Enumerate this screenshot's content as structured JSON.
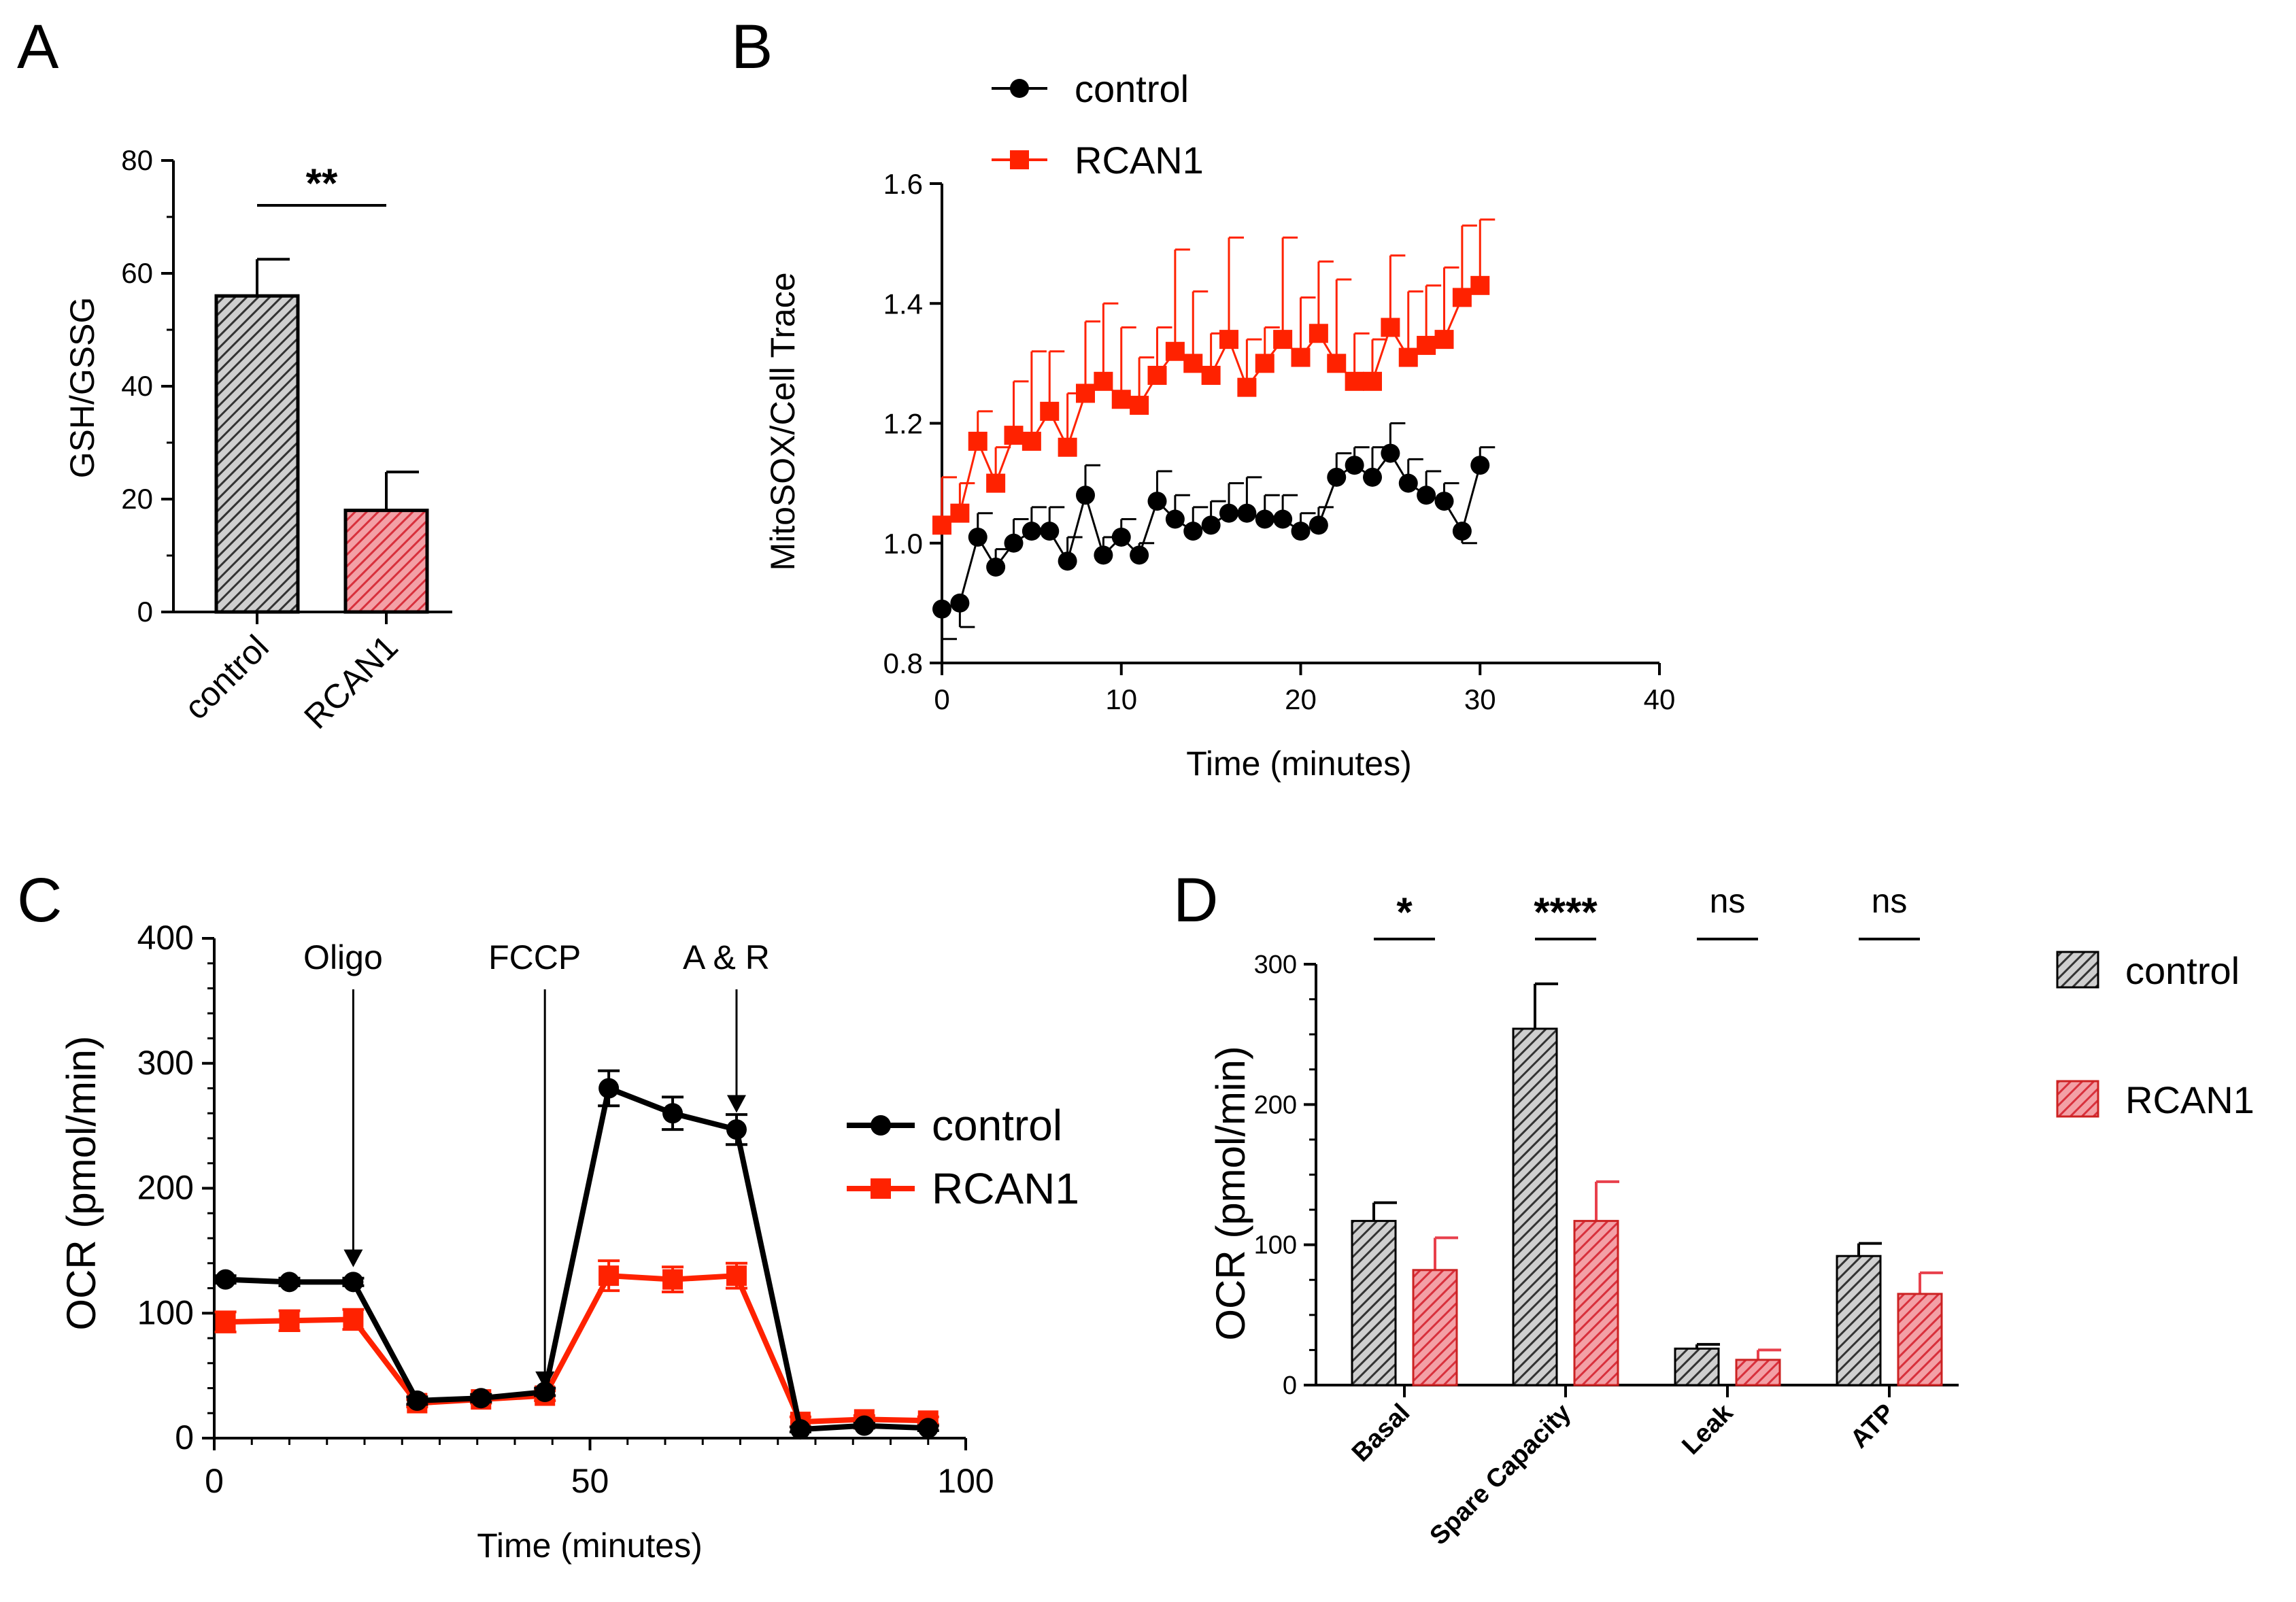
{
  "colors": {
    "control": "#000000",
    "rcan1_line": "#ff2200",
    "rcan1_bar": "#e8404c",
    "control_hatch": "#444444"
  },
  "chart_data": [
    {
      "panel": "A",
      "type": "bar",
      "ylabel": "GSH/GSSG",
      "ylim": [
        0,
        80
      ],
      "yticks": [
        "0",
        "20",
        "40",
        "60",
        "80"
      ],
      "categories": [
        "control",
        "RCAN1"
      ],
      "values": [
        56,
        18
      ],
      "errors": [
        6.5,
        6.8
      ],
      "significance": "**"
    },
    {
      "panel": "B",
      "type": "line",
      "xlabel": "Time (minutes)",
      "ylabel": "MitoSOX/Cell Trace",
      "xlim": [
        0,
        40
      ],
      "ylim": [
        0.8,
        1.6
      ],
      "xticks": [
        "0",
        "10",
        "20",
        "30",
        "40"
      ],
      "yticks": [
        "0.8",
        "1.0",
        "1.2",
        "1.4",
        "1.6"
      ],
      "series": [
        {
          "name": "control",
          "x": [
            0,
            1,
            2,
            3,
            4,
            5,
            6,
            7,
            8,
            9,
            10,
            11,
            12,
            13,
            14,
            15,
            16,
            17,
            18,
            19,
            20,
            21,
            22,
            23,
            24,
            25,
            26,
            27,
            28,
            29,
            30
          ],
          "values": [
            0.89,
            0.9,
            1.01,
            0.96,
            1.0,
            1.02,
            1.02,
            0.97,
            1.08,
            0.98,
            1.01,
            0.98,
            1.07,
            1.04,
            1.02,
            1.03,
            1.05,
            1.05,
            1.04,
            1.04,
            1.02,
            1.03,
            1.11,
            1.13,
            1.11,
            1.15,
            1.1,
            1.08,
            1.07,
            1.02,
            1.13
          ],
          "errors": [
            0.05,
            0.04,
            0.04,
            0.03,
            0.04,
            0.04,
            0.04,
            0.04,
            0.05,
            0.03,
            0.03,
            0.02,
            0.05,
            0.04,
            0.04,
            0.04,
            0.05,
            0.06,
            0.04,
            0.04,
            0.03,
            0.03,
            0.04,
            0.03,
            0.05,
            0.05,
            0.04,
            0.04,
            0.03,
            0.02,
            0.03
          ]
        },
        {
          "name": "RCAN1",
          "x": [
            0,
            1,
            2,
            3,
            4,
            5,
            6,
            7,
            8,
            9,
            10,
            11,
            12,
            13,
            14,
            15,
            16,
            17,
            18,
            19,
            20,
            21,
            22,
            23,
            24,
            25,
            26,
            27,
            28,
            29,
            30
          ],
          "values": [
            1.03,
            1.05,
            1.17,
            1.1,
            1.18,
            1.17,
            1.22,
            1.16,
            1.25,
            1.27,
            1.24,
            1.23,
            1.28,
            1.32,
            1.3,
            1.28,
            1.34,
            1.26,
            1.3,
            1.34,
            1.31,
            1.35,
            1.3,
            1.27,
            1.27,
            1.36,
            1.31,
            1.33,
            1.34,
            1.41,
            1.43
          ]
        }
      ],
      "error_rcan1": [
        0.08,
        0.05,
        0.05,
        0.06,
        0.09,
        0.15,
        0.1,
        0.09,
        0.12,
        0.13,
        0.12,
        0.08,
        0.08,
        0.17,
        0.12,
        0.07,
        0.17,
        0.08,
        0.06,
        0.17,
        0.1,
        0.12,
        0.14,
        0.08,
        0.07,
        0.12,
        0.11,
        0.1,
        0.12,
        0.12,
        0.11
      ]
    },
    {
      "panel": "C",
      "type": "line",
      "xlabel": "Time (minutes)",
      "ylabel": "OCR (pmol/min)",
      "xlim": [
        0,
        100
      ],
      "ylim": [
        0,
        400
      ],
      "xticks": [
        "0",
        "50",
        "100"
      ],
      "yticks": [
        "0",
        "100",
        "200",
        "300",
        "400"
      ],
      "series": [
        {
          "name": "control",
          "x": [
            1.5,
            10,
            18.5,
            27,
            35.5,
            44,
            52.5,
            61,
            69.5,
            78,
            86.5,
            95
          ],
          "values": [
            127,
            125,
            125,
            30,
            32,
            37,
            280,
            260,
            247,
            7,
            10,
            8
          ],
          "errors": [
            3,
            3,
            3,
            3,
            3,
            3,
            14,
            13,
            12,
            2,
            2,
            2
          ]
        },
        {
          "name": "RCAN1",
          "x": [
            1.5,
            10,
            18.5,
            27,
            35.5,
            44,
            52.5,
            61,
            69.5,
            78,
            86.5,
            95
          ],
          "values": [
            93,
            94,
            95,
            28,
            31,
            34,
            130,
            127,
            130,
            13,
            15,
            14
          ],
          "errors": [
            8,
            8,
            8,
            3,
            3,
            4,
            12,
            10,
            10,
            4,
            3,
            3
          ]
        }
      ],
      "annotations": [
        {
          "label": "Oligo",
          "x": 18.5
        },
        {
          "label": "FCCP",
          "x": 44
        },
        {
          "label": "A & R",
          "x": 69.5
        }
      ]
    },
    {
      "panel": "D",
      "type": "bar",
      "ylabel": "OCR (pmol/min)",
      "ylim": [
        0,
        300
      ],
      "yticks": [
        "0",
        "100",
        "200",
        "300"
      ],
      "categories": [
        "Basal",
        "Spare Capacity",
        "Leak",
        "ATP"
      ],
      "series": [
        {
          "name": "control",
          "values": [
            117,
            254,
            26,
            92
          ],
          "errors": [
            13,
            32,
            3,
            9
          ]
        },
        {
          "name": "RCAN1",
          "values": [
            82,
            117,
            18,
            65
          ],
          "errors": [
            23,
            28,
            7,
            15
          ]
        }
      ],
      "significance": [
        "*",
        "****",
        "ns",
        "ns"
      ]
    }
  ],
  "panels": {
    "A": {
      "label": "A"
    },
    "B": {
      "label": "B"
    },
    "C": {
      "label": "C"
    },
    "D": {
      "label": "D"
    }
  }
}
